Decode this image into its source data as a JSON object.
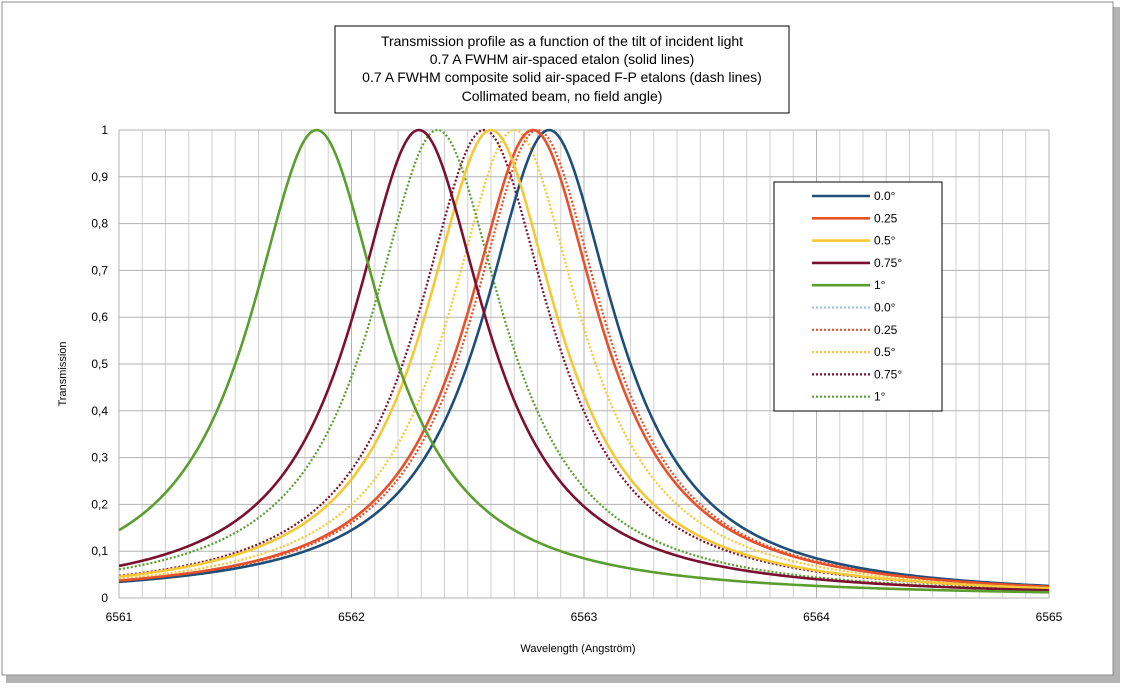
{
  "chart_data": {
    "type": "line",
    "title_lines": [
      "Transmission profile as a function of the tilt of incident light",
      "0.7 A FWHM air-spaced etalon (solid lines)",
      "0.7 A FWHM composite solid air-spaced F-P etalons (dash lines)",
      "Collimated beam, no field angle)"
    ],
    "xlabel": "Wavelength (Angström)",
    "ylabel": "Transmission",
    "xlim": [
      6561,
      6565
    ],
    "ylim": [
      0,
      1
    ],
    "x_ticks": [
      "6561",
      "6562",
      "6563",
      "6564",
      "6565"
    ],
    "y_ticks": [
      "0",
      "0,1",
      "0,2",
      "0,3",
      "0,4",
      "0,5",
      "0,6",
      "0,7",
      "0,8",
      "0,9",
      "1"
    ],
    "grid": true,
    "legend_position": "right",
    "profile": "lorentzian",
    "series": [
      {
        "name": "0.0°",
        "center": 6562.85,
        "fwhm": 0.7,
        "color": "#1f4e79",
        "style": "solid"
      },
      {
        "name": "0.25",
        "center": 6562.78,
        "fwhm": 0.7,
        "color": "#e8502a",
        "style": "solid"
      },
      {
        "name": "0.5°",
        "center": 6562.6,
        "fwhm": 0.7,
        "color": "#f5c835",
        "style": "solid"
      },
      {
        "name": "0.75°",
        "center": 6562.29,
        "fwhm": 0.7,
        "color": "#7b1030",
        "style": "solid"
      },
      {
        "name": "1°",
        "center": 6561.85,
        "fwhm": 0.7,
        "color": "#5a9e2f",
        "style": "solid"
      },
      {
        "name": "0.0°",
        "center": 6562.85,
        "fwhm": 0.7,
        "color": "#9dc3e6",
        "style": "dotted"
      },
      {
        "name": "0.25",
        "center": 6562.8,
        "fwhm": 0.7,
        "color": "#e8502a",
        "style": "dotted"
      },
      {
        "name": "0.5°",
        "center": 6562.7,
        "fwhm": 0.7,
        "color": "#f5c835",
        "style": "dotted"
      },
      {
        "name": "0.75°",
        "center": 6562.57,
        "fwhm": 0.7,
        "color": "#7b1030",
        "style": "dotted"
      },
      {
        "name": "1°",
        "center": 6562.37,
        "fwhm": 0.7,
        "color": "#5a9e2f",
        "style": "dotted"
      }
    ]
  }
}
